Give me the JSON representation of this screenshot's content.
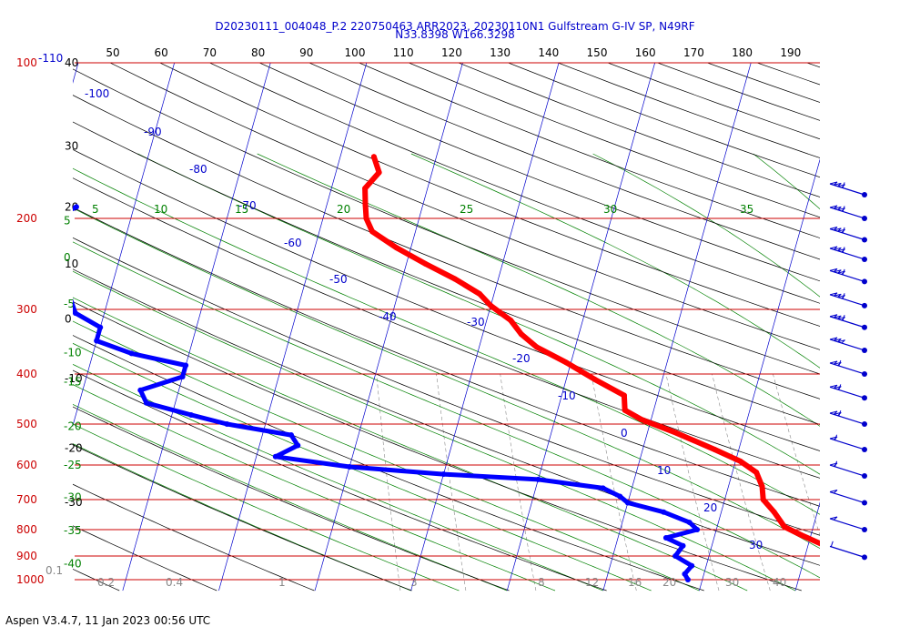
{
  "header": {
    "title_line1": "D20230111_004048_P.2 220750463 ARR2023, 20230110N1 Gulfstream G-IV SP, N49RF",
    "title_line2": "N33.8398 W166.3298"
  },
  "footer": {
    "text": "Aspen V3.4.7, 11 Jan 2023  00:56 UTC"
  },
  "colors": {
    "isobar": "#cc0000",
    "isotherm": "#0000cc",
    "dry_adiabat": "#000000",
    "moist_adiabat": "#008000",
    "mixing_ratio": "#888888",
    "temperature": "#ff0000",
    "dewpoint": "#0000ff",
    "wind": "#0000cc"
  },
  "chart_data": {
    "type": "skew-t",
    "pressure_axis": {
      "unit": "hPa",
      "range": [
        1000,
        100
      ],
      "labels": [
        {
          "p": 100,
          "text": "100"
        },
        {
          "p": 200,
          "text": "200"
        },
        {
          "p": 300,
          "text": "300"
        },
        {
          "p": 400,
          "text": "400"
        },
        {
          "p": 500,
          "text": "500"
        },
        {
          "p": 600,
          "text": "600"
        },
        {
          "p": 700,
          "text": "700"
        },
        {
          "p": 800,
          "text": "800"
        },
        {
          "p": 900,
          "text": "900"
        },
        {
          "p": 1000,
          "text": "1000"
        }
      ],
      "top_extra_label": "-110"
    },
    "top_axis_labels": [
      "50",
      "60",
      "70",
      "80",
      "90",
      "100",
      "110",
      "120",
      "130",
      "140",
      "150",
      "160",
      "170",
      "180",
      "190"
    ],
    "left_black_labels": [
      {
        "text": "40",
        "p": 100
      },
      {
        "text": "30",
        "p": 145
      },
      {
        "text": "20",
        "p": 190
      },
      {
        "text": "10",
        "p": 245
      },
      {
        "text": "0",
        "p": 313
      },
      {
        "text": "-10",
        "p": 408
      },
      {
        "text": "-20",
        "p": 557
      },
      {
        "text": "-30",
        "p": 708
      }
    ],
    "left_green_labels": [
      {
        "text": "5",
        "p": 202
      },
      {
        "text": "0",
        "p": 238
      },
      {
        "text": "-5",
        "p": 293
      },
      {
        "text": "-10",
        "p": 364
      },
      {
        "text": "-15",
        "p": 414
      },
      {
        "text": "-20",
        "p": 505
      },
      {
        "text": "-25",
        "p": 600
      },
      {
        "text": "-30",
        "p": 693
      },
      {
        "text": "-35",
        "p": 804
      },
      {
        "text": "-40",
        "p": 932
      }
    ],
    "corner_label": "0.1",
    "isotherm_labels": [
      "-100",
      "-90",
      "-80",
      "-70",
      "-60",
      "-50",
      "-40",
      "-30",
      "-20",
      "-10",
      "0",
      "10",
      "20",
      "30"
    ],
    "moist_top_labels": [
      "5",
      "10",
      "15",
      "20",
      "25",
      "30",
      "35"
    ],
    "mixing_ratio_labels": [
      "0.2",
      "0.4",
      "1",
      "3",
      "8",
      "12",
      "16",
      "20",
      "30",
      "40"
    ],
    "temperature_profile": [
      {
        "p": 1000,
        "t": 8.5
      },
      {
        "p": 960,
        "t": 6.5
      },
      {
        "p": 920,
        "t": 5.0
      },
      {
        "p": 870,
        "t": 2.5
      },
      {
        "p": 820,
        "t": -1.0
      },
      {
        "p": 790,
        "t": -3.0
      },
      {
        "p": 740,
        "t": -4.5
      },
      {
        "p": 700,
        "t": -6.0
      },
      {
        "p": 660,
        "t": -6.5
      },
      {
        "p": 620,
        "t": -7.5
      },
      {
        "p": 590,
        "t": -9.5
      },
      {
        "p": 560,
        "t": -12.5
      },
      {
        "p": 520,
        "t": -17.0
      },
      {
        "p": 490,
        "t": -21.0
      },
      {
        "p": 470,
        "t": -23.0
      },
      {
        "p": 440,
        "t": -23.5
      },
      {
        "p": 410,
        "t": -27.0
      },
      {
        "p": 380,
        "t": -30.5
      },
      {
        "p": 355,
        "t": -34.0
      },
      {
        "p": 335,
        "t": -36.0
      },
      {
        "p": 315,
        "t": -37.5
      },
      {
        "p": 295,
        "t": -40.0
      },
      {
        "p": 280,
        "t": -41.5
      },
      {
        "p": 262,
        "t": -44.5
      },
      {
        "p": 245,
        "t": -48.0
      },
      {
        "p": 228,
        "t": -51.5
      },
      {
        "p": 212,
        "t": -54.5
      },
      {
        "p": 200,
        "t": -55.5
      },
      {
        "p": 188,
        "t": -56.0
      },
      {
        "p": 175,
        "t": -56.5
      },
      {
        "p": 163,
        "t": -55.5
      },
      {
        "p": 152,
        "t": -56.5
      }
    ],
    "dewpoint_profile": [
      {
        "p": 1000,
        "td": -11.5
      },
      {
        "p": 975,
        "td": -12.0
      },
      {
        "p": 940,
        "td": -11.5
      },
      {
        "p": 900,
        "td": -13.5
      },
      {
        "p": 860,
        "td": -13.0
      },
      {
        "p": 830,
        "td": -15.0
      },
      {
        "p": 800,
        "td": -12.0
      },
      {
        "p": 775,
        "td": -13.0
      },
      {
        "p": 740,
        "td": -16.0
      },
      {
        "p": 710,
        "td": -20.0
      },
      {
        "p": 690,
        "td": -21.0
      },
      {
        "p": 665,
        "td": -23.0
      },
      {
        "p": 640,
        "td": -30.0
      },
      {
        "p": 625,
        "td": -40.0
      },
      {
        "p": 605,
        "td": -50.0
      },
      {
        "p": 578,
        "td": -58.0
      },
      {
        "p": 550,
        "td": -56.0
      },
      {
        "p": 525,
        "td": -57.0
      },
      {
        "p": 500,
        "td": -64.0
      },
      {
        "p": 480,
        "td": -68.0
      },
      {
        "p": 455,
        "td": -73.0
      },
      {
        "p": 430,
        "td": -74.0
      },
      {
        "p": 405,
        "td": -70.0
      },
      {
        "p": 385,
        "td": -70.0
      },
      {
        "p": 365,
        "td": -76.0
      },
      {
        "p": 345,
        "td": -80.0
      },
      {
        "p": 325,
        "td": -80.0
      },
      {
        "p": 305,
        "td": -83.0
      },
      {
        "p": 285,
        "td": -84.0
      },
      {
        "p": 265,
        "td": -85.0
      },
      {
        "p": 245,
        "td": -86.5
      },
      {
        "p": 225,
        "td": -87.0
      },
      {
        "p": 210,
        "td": -88.0
      },
      {
        "p": 200,
        "td": -88.0
      },
      {
        "p": 190,
        "td": -86.0
      }
    ],
    "wind_barbs": [
      {
        "p": 180,
        "speed": 35
      },
      {
        "p": 200,
        "speed": 35
      },
      {
        "p": 220,
        "speed": 35
      },
      {
        "p": 240,
        "speed": 35
      },
      {
        "p": 265,
        "speed": 35
      },
      {
        "p": 295,
        "speed": 35
      },
      {
        "p": 325,
        "speed": 35
      },
      {
        "p": 360,
        "speed": 30
      },
      {
        "p": 400,
        "speed": 25
      },
      {
        "p": 445,
        "speed": 25
      },
      {
        "p": 500,
        "speed": 25
      },
      {
        "p": 560,
        "speed": 15
      },
      {
        "p": 630,
        "speed": 15
      },
      {
        "p": 710,
        "speed": 10
      },
      {
        "p": 800,
        "speed": 10
      },
      {
        "p": 905,
        "speed": 5
      }
    ]
  }
}
